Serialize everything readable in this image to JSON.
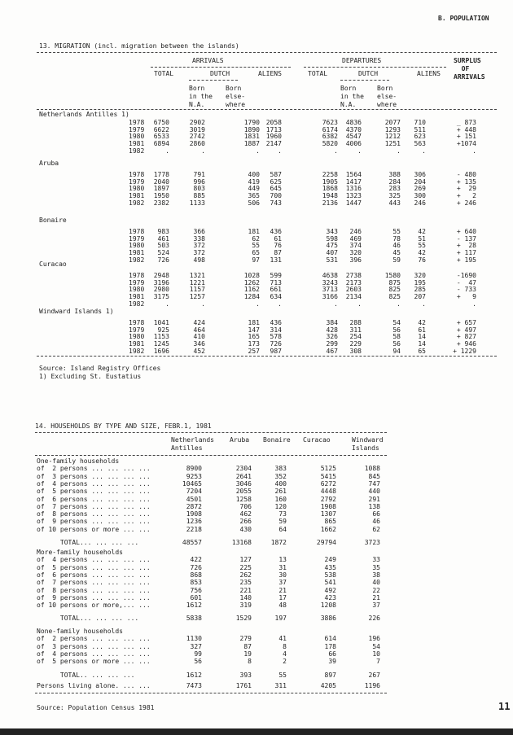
{
  "header": {
    "section": "B. POPULATION",
    "page_number": "11"
  },
  "table13": {
    "title": "13. MIGRATION (incl. migration between the islands)",
    "headers": {
      "arrivals": "ARRIVALS",
      "departures": "DEPARTURES",
      "surplus": "SURPLUS\n  OF\nARRIVALS",
      "total": "TOTAL",
      "dutch": "DUTCH",
      "aliens": "ALIENS",
      "born_na": "Born\nin the\nN.A.",
      "born_else": "Born\nelse-\nwhere"
    },
    "groups": [
      {
        "name": "Netherlands Antilles 1)",
        "rows": [
          [
            "1978",
            "6750",
            "2902",
            "1790",
            "2058",
            "7623",
            "4836",
            "2077",
            "710",
            "_ 873"
          ],
          [
            "1979",
            "6622",
            "3019",
            "1890",
            "1713",
            "6174",
            "4370",
            "1293",
            "511",
            "+ 448"
          ],
          [
            "1980",
            "6533",
            "2742",
            "1831",
            "1960",
            "6382",
            "4547",
            "1212",
            "623",
            "+ 151"
          ],
          [
            "1981",
            "6894",
            "2860",
            "1887",
            "2147",
            "5820",
            "4006",
            "1251",
            "563",
            "+1074"
          ],
          [
            "1982",
            ".",
            ".",
            ".",
            ".",
            ".",
            ".",
            ".",
            ".",
            "."
          ]
        ]
      },
      {
        "name": "Aruba",
        "rows": [
          [
            "1978",
            "1778",
            "791",
            "400",
            "587",
            "2258",
            "1564",
            "388",
            "306",
            "- 480"
          ],
          [
            "1979",
            "2040",
            "996",
            "419",
            "625",
            "1905",
            "1417",
            "284",
            "204",
            "+ 135"
          ],
          [
            "1980",
            "1897",
            "803",
            "449",
            "645",
            "1868",
            "1316",
            "283",
            "269",
            "+  29"
          ],
          [
            "1981",
            "1950",
            "885",
            "365",
            "700",
            "1948",
            "1323",
            "325",
            "300",
            "+   2"
          ],
          [
            "1982",
            "2382",
            "1133",
            "506",
            "743",
            "2136",
            "1447",
            "443",
            "246",
            "+ 246"
          ]
        ]
      },
      {
        "name": "Bonaire",
        "rows": [
          [
            "1978",
            "983",
            "366",
            "181",
            "436",
            "343",
            "246",
            "55",
            "42",
            "+ 640"
          ],
          [
            "1979",
            "461",
            "338",
            "62",
            "61",
            "598",
            "469",
            "78",
            "51",
            "- 137"
          ],
          [
            "1980",
            "503",
            "372",
            "55",
            "76",
            "475",
            "374",
            "46",
            "55",
            "+  28"
          ],
          [
            "1981",
            "524",
            "372",
            "65",
            "87",
            "407",
            "320",
            "45",
            "42",
            "+ 117"
          ],
          [
            "1982",
            "726",
            "498",
            "97",
            "131",
            "531",
            "396",
            "59",
            "76",
            "+ 195"
          ]
        ]
      },
      {
        "name": "Curacao",
        "rows": [
          [
            "1978",
            "2948",
            "1321",
            "1028",
            "599",
            "4638",
            "2738",
            "1580",
            "320",
            "-1690"
          ],
          [
            "1979",
            "3196",
            "1221",
            "1262",
            "713",
            "3243",
            "2173",
            "875",
            "195",
            "-  47"
          ],
          [
            "1980",
            "2980",
            "1157",
            "1162",
            "661",
            "3713",
            "2603",
            "825",
            "285",
            "- 733"
          ],
          [
            "1981",
            "3175",
            "1257",
            "1284",
            "634",
            "3166",
            "2134",
            "825",
            "207",
            "+   9"
          ],
          [
            "1982",
            ".",
            ".",
            ".",
            ".",
            ".",
            ".",
            ".",
            ".",
            "."
          ]
        ]
      },
      {
        "name": "Windward Islands 1)",
        "rows": [
          [
            "1978",
            "1041",
            "424",
            "181",
            "436",
            "384",
            "288",
            "54",
            "42",
            "+ 657"
          ],
          [
            "1979",
            "925",
            "464",
            "147",
            "314",
            "428",
            "311",
            "56",
            "61",
            "+ 497"
          ],
          [
            "1980",
            "1153",
            "410",
            "165",
            "578",
            "326",
            "254",
            "58",
            "14",
            "+ 827"
          ],
          [
            "1981",
            "1245",
            "346",
            "173",
            "726",
            "299",
            "229",
            "56",
            "14",
            "+ 946"
          ],
          [
            "1982",
            "1696",
            "452",
            "257",
            "987",
            "467",
            "308",
            "94",
            "65",
            "+ 1229"
          ]
        ]
      }
    ],
    "source": "Source: Island Registry Offices",
    "footnote": "1) Excluding St. Eustatius"
  },
  "table14": {
    "title": "14. HOUSEHOLDS BY TYPE AND SIZE, FEBR.1, 1981",
    "columns": [
      "Netherlands\nAntilles",
      "Aruba",
      "Bonaire",
      "Curacao",
      "Windward\nIslands"
    ],
    "sections": [
      {
        "name": "One-family households",
        "rows": [
          [
            "of  2 persons ... ... ... ...",
            "8900",
            "2304",
            "383",
            "5125",
            "1088"
          ],
          [
            "of  3 persons ... ... ... ...",
            "9253",
            "2641",
            "352",
            "5415",
            "845"
          ],
          [
            "of  4 persons ... ... ... ...",
            "10465",
            "3046",
            "400",
            "6272",
            "747"
          ],
          [
            "of  5 persons ... ... ... ...",
            "7204",
            "2055",
            "261",
            "4448",
            "440"
          ],
          [
            "of  6 persons ... ... ... ...",
            "4501",
            "1258",
            "160",
            "2792",
            "291"
          ],
          [
            "of  7 persons ... ... ... ...",
            "2872",
            "706",
            "120",
            "1908",
            "138"
          ],
          [
            "of  8 persons ... ... ... ...",
            "1908",
            "462",
            "73",
            "1307",
            "66"
          ],
          [
            "of  9 persons ... ... ... ...",
            "1236",
            "266",
            "59",
            "865",
            "46"
          ],
          [
            "of 10 persons or more ... ...",
            "2218",
            "430",
            "64",
            "1662",
            "62"
          ]
        ],
        "total": [
          "      TOTAL... ... ... ...",
          "48557",
          "13168",
          "1872",
          "29794",
          "3723"
        ]
      },
      {
        "name": "More-family households",
        "rows": [
          [
            "of  4 persons ... ... ... ...",
            "422",
            "127",
            "13",
            "249",
            "33"
          ],
          [
            "of  5 persons ... ... ... ...",
            "726",
            "225",
            "31",
            "435",
            "35"
          ],
          [
            "of  6 persons ... ... ... ...",
            "868",
            "262",
            "30",
            "538",
            "38"
          ],
          [
            "of  7 persons ... ... ... ...",
            "853",
            "235",
            "37",
            "541",
            "40"
          ],
          [
            "of  8 persons ... ... ... ...",
            "756",
            "221",
            "21",
            "492",
            "22"
          ],
          [
            "of  9 persons ... ... ... ...",
            "601",
            "140",
            "17",
            "423",
            "21"
          ],
          [
            "of 10 persons or more,... ...",
            "1612",
            "319",
            "48",
            "1208",
            "37"
          ]
        ],
        "total": [
          "      TOTAL... ... ... ...",
          "5838",
          "1529",
          "197",
          "3886",
          "226"
        ]
      },
      {
        "name": "None-family households",
        "rows": [
          [
            "of  2 persons ... ... ... ...",
            "1130",
            "279",
            "41",
            "614",
            "196"
          ],
          [
            "of  3 persons ... ... ... ...",
            "327",
            "87",
            "8",
            "178",
            "54"
          ],
          [
            "of  4 persons ... ... ... ...",
            "99",
            "19",
            "4",
            "66",
            "10"
          ],
          [
            "of  5 persons or more ... ...",
            "56",
            "8",
            "2",
            "39",
            "7"
          ]
        ],
        "total": [
          "      TOTAL.. ... ... ...",
          "1612",
          "393",
          "55",
          "897",
          "267"
        ]
      }
    ],
    "alone": [
      "Persons living alone. ... ...",
      "7473",
      "1761",
      "311",
      "4205",
      "1196"
    ],
    "source": "Source: Population Census 1981"
  }
}
